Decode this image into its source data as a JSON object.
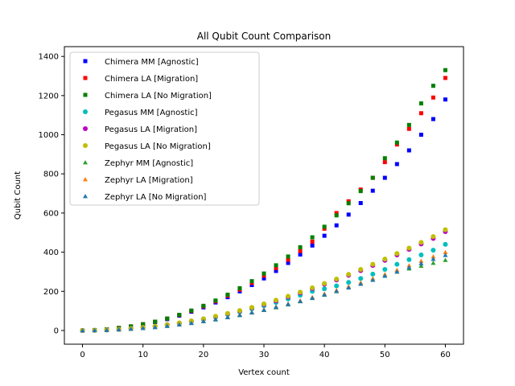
{
  "chart_data": {
    "type": "scatter",
    "title": "All Qubit Count Comparison",
    "xlabel": "Vertex count",
    "ylabel": "Qubit Count",
    "xlim": [
      -3,
      63
    ],
    "ylim": [
      -70,
      1450
    ],
    "xticks": [
      0,
      10,
      20,
      30,
      40,
      50,
      60
    ],
    "yticks": [
      0,
      200,
      400,
      600,
      800,
      1000,
      1200,
      1400
    ],
    "grid": false,
    "legend_position": "top-left",
    "x": [
      0,
      2,
      4,
      6,
      8,
      10,
      12,
      14,
      16,
      18,
      20,
      22,
      24,
      26,
      28,
      30,
      32,
      34,
      36,
      38,
      40,
      42,
      44,
      46,
      48,
      50,
      52,
      54,
      56,
      58,
      60
    ],
    "series": [
      {
        "name": "Chimera MM [Agnostic]",
        "color": "#0000ff",
        "marker": "square",
        "values": [
          0,
          2,
          6,
          12,
          20,
          30,
          43,
          58,
          76,
          96,
          118,
          143,
          170,
          200,
          232,
          266,
          304,
          345,
          388,
          434,
          484,
          537,
          592,
          651,
          714,
          780,
          850,
          920,
          1000,
          1080,
          1180
        ]
      },
      {
        "name": "Chimera LA [Migration]",
        "color": "#ff0000",
        "marker": "square",
        "values": [
          0,
          2,
          6,
          13,
          21,
          32,
          45,
          61,
          79,
          100,
          123,
          149,
          178,
          209,
          243,
          280,
          319,
          361,
          406,
          454,
          520,
          600,
          660,
          720,
          780,
          860,
          950,
          1030,
          1110,
          1190,
          1290
        ]
      },
      {
        "name": "Chimera LA [No Migration]",
        "color": "#008000",
        "marker": "square",
        "values": [
          0,
          2,
          6,
          13,
          21,
          32,
          45,
          61,
          80,
          102,
          126,
          153,
          183,
          216,
          252,
          291,
          333,
          378,
          425,
          476,
          530,
          588,
          650,
          712,
          780,
          880,
          960,
          1050,
          1160,
          1250,
          1330
        ]
      },
      {
        "name": "Pegasus MM [Agnostic]",
        "color": "#00bfbf",
        "marker": "circle",
        "values": [
          0,
          1,
          3,
          6,
          10,
          15,
          21,
          28,
          36,
          45,
          56,
          68,
          81,
          95,
          110,
          126,
          143,
          161,
          180,
          200,
          213,
          228,
          246,
          266,
          288,
          312,
          338,
          362,
          386,
          410,
          440
        ]
      },
      {
        "name": "Pegasus LA [Migration]",
        "color": "#bf00bf",
        "marker": "circle",
        "values": [
          0,
          1,
          3,
          6,
          10,
          16,
          22,
          30,
          38,
          48,
          59,
          71,
          85,
          100,
          116,
          133,
          151,
          171,
          192,
          214,
          236,
          258,
          282,
          306,
          332,
          358,
          386,
          414,
          442,
          470,
          505
        ]
      },
      {
        "name": "Pegasus LA [No Migration]",
        "color": "#bfbf00",
        "marker": "circle",
        "values": [
          0,
          1,
          3,
          6,
          10,
          16,
          22,
          30,
          39,
          49,
          60,
          73,
          87,
          102,
          118,
          136,
          155,
          175,
          196,
          218,
          240,
          263,
          287,
          312,
          338,
          365,
          393,
          421,
          450,
          480,
          515
        ]
      },
      {
        "name": "Zephyr MM [Agnostic]",
        "color": "#2ca02c",
        "marker": "triangle",
        "values": [
          0,
          1,
          2,
          5,
          8,
          12,
          17,
          23,
          30,
          38,
          47,
          56,
          67,
          78,
          91,
          104,
          118,
          133,
          149,
          165,
          182,
          200,
          219,
          238,
          258,
          279,
          300,
          316,
          330,
          345,
          360
        ]
      },
      {
        "name": "Zephyr LA [Migration]",
        "color": "#ff7f0e",
        "marker": "triangle",
        "values": [
          0,
          1,
          2,
          5,
          8,
          13,
          18,
          24,
          31,
          39,
          48,
          58,
          69,
          81,
          94,
          107,
          122,
          137,
          153,
          170,
          188,
          206,
          225,
          245,
          266,
          287,
          309,
          332,
          355,
          378,
          400
        ]
      },
      {
        "name": "Zephyr LA [No Migration]",
        "color": "#1f77b4",
        "marker": "triangle",
        "values": [
          0,
          1,
          2,
          5,
          8,
          12,
          17,
          23,
          30,
          38,
          47,
          57,
          68,
          79,
          92,
          105,
          120,
          135,
          150,
          166,
          183,
          201,
          219,
          238,
          258,
          279,
          300,
          322,
          343,
          365,
          385
        ]
      }
    ]
  }
}
